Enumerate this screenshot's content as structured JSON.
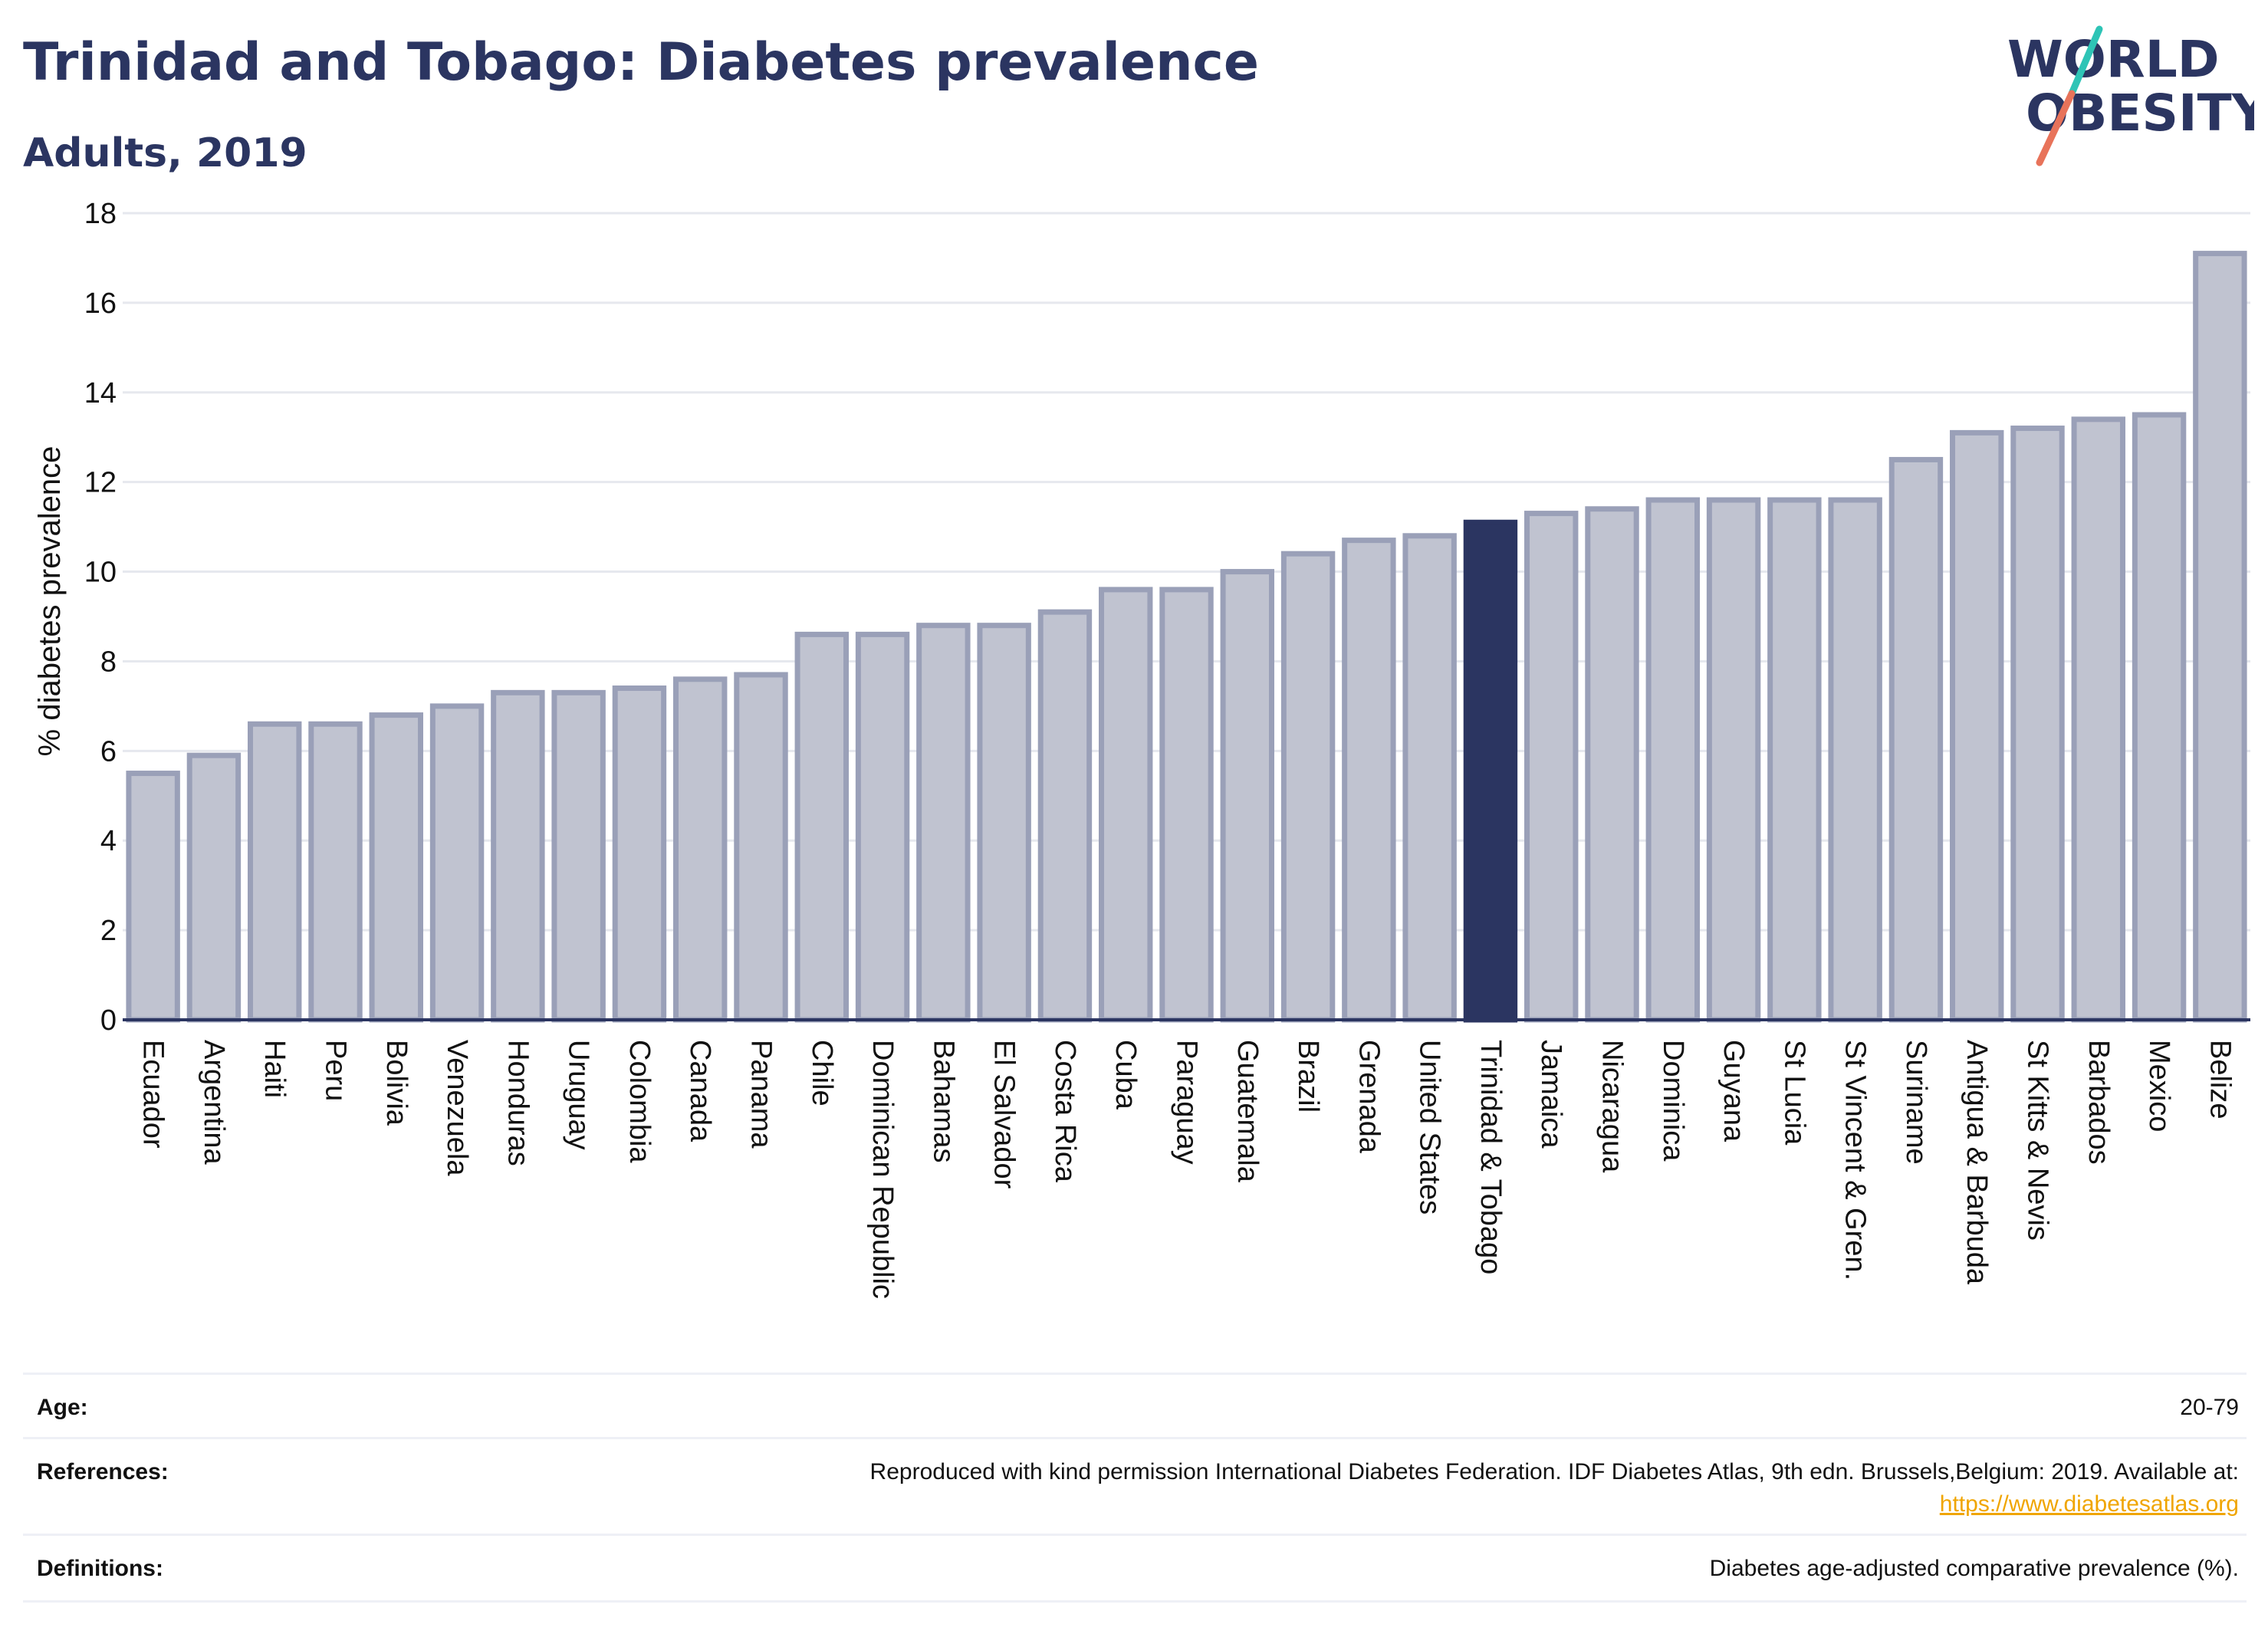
{
  "header": {
    "title": "Trinidad and Tobago: Diabetes prevalence",
    "subtitle": "Adults, 2019"
  },
  "logo": {
    "line1": "WORLD",
    "line2": "OBESITY",
    "slash_colors": [
      "#2ec4b6",
      "#e8735a"
    ]
  },
  "colors": {
    "highlight": "#2b3561",
    "bar_fill": "#c0c3d0",
    "bar_stroke": "#9aa0b8",
    "grid": "#e6e8ee"
  },
  "chart_data": {
    "type": "bar",
    "title": "",
    "xlabel": "",
    "ylabel": "% diabetes prevalence",
    "ylim": [
      0,
      18
    ],
    "yticks": [
      0,
      2,
      4,
      6,
      8,
      10,
      12,
      14,
      16,
      18
    ],
    "grid": true,
    "highlight": "Trinidad & Tobago",
    "categories": [
      "Ecuador",
      "Argentina",
      "Haiti",
      "Peru",
      "Bolivia",
      "Venezuela",
      "Honduras",
      "Uruguay",
      "Colombia",
      "Canada",
      "Panama",
      "Chile",
      "Dominican Republic",
      "Bahamas",
      "El Salvador",
      "Costa Rica",
      "Cuba",
      "Paraguay",
      "Guatemala",
      "Brazil",
      "Grenada",
      "United States",
      "Trinidad & Tobago",
      "Jamaica",
      "Nicaragua",
      "Dominica",
      "Guyana",
      "St Lucia",
      "St Vincent & Gren.",
      "Suriname",
      "Antigua & Barbuda",
      "St Kitts & Nevis",
      "Barbados",
      "Mexico",
      "Belize"
    ],
    "values": [
      5.5,
      5.9,
      6.6,
      6.6,
      6.8,
      7.0,
      7.3,
      7.3,
      7.4,
      7.6,
      7.7,
      8.6,
      8.6,
      8.8,
      8.8,
      9.1,
      9.6,
      9.6,
      10.0,
      10.4,
      10.7,
      10.8,
      11.1,
      11.3,
      11.4,
      11.6,
      11.6,
      11.6,
      11.6,
      12.5,
      13.1,
      13.2,
      13.4,
      13.5,
      17.1
    ]
  },
  "info": {
    "age_label": "Age:",
    "age_value": "20-79",
    "references_label": "References:",
    "references_value": "Reproduced with kind permission International Diabetes Federation. IDF Diabetes Atlas, 9th edn. Brussels,Belgium: 2019. Available at:",
    "references_link": "https://www.diabetesatlas.org",
    "definitions_label": "Definitions:",
    "definitions_value": "Diabetes age-adjusted comparative prevalence (%)."
  }
}
